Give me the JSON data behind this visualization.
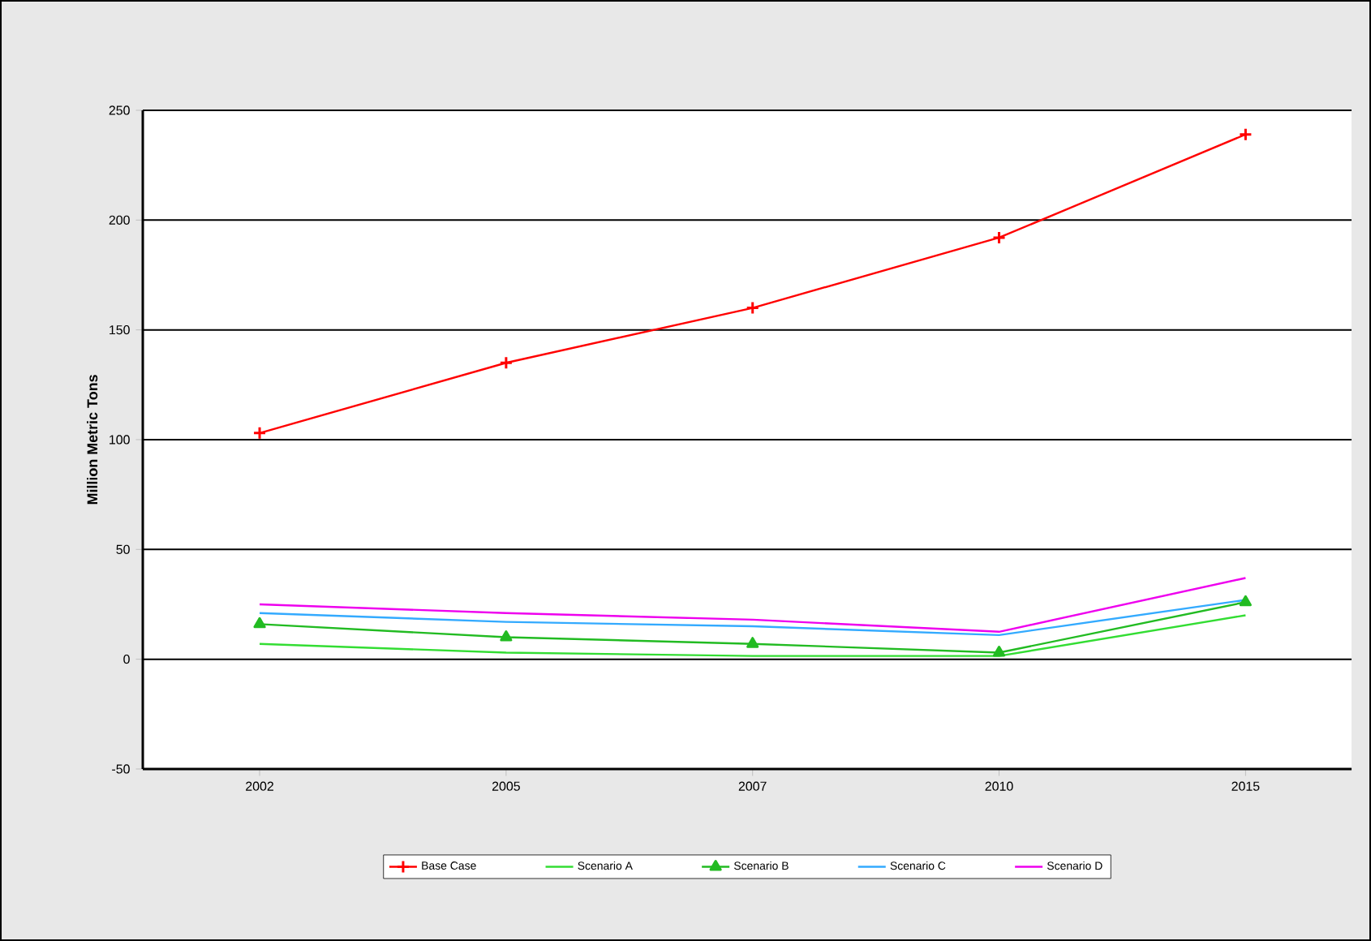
{
  "chart_data": {
    "type": "line",
    "ylabel": "Million Metric Tons",
    "categories": [
      "2002",
      "2005",
      "2007",
      "2010",
      "2015"
    ],
    "series": [
      {
        "name": "Base Case",
        "color": "#ff0000",
        "marker": "cross",
        "values": [
          103,
          135,
          160,
          192,
          239
        ]
      },
      {
        "name": "Scenario A",
        "color": "#33dd33",
        "marker": "none",
        "values": [
          7,
          3,
          1.5,
          1.5,
          20
        ]
      },
      {
        "name": "Scenario B",
        "color": "#22bb22",
        "marker": "triangle",
        "values": [
          16,
          10,
          7,
          3,
          26
        ]
      },
      {
        "name": "Scenario C",
        "color": "#33aaff",
        "marker": "none",
        "values": [
          21,
          17,
          15,
          11,
          27
        ]
      },
      {
        "name": "Scenario D",
        "color": "#ee00ee",
        "marker": "none",
        "values": [
          25,
          21,
          18,
          12.5,
          37
        ]
      }
    ],
    "ylim": [
      -50,
      250
    ],
    "yticks": [
      -50,
      0,
      50,
      100,
      150,
      200,
      250
    ],
    "grid": "y",
    "legend": "bottom"
  }
}
